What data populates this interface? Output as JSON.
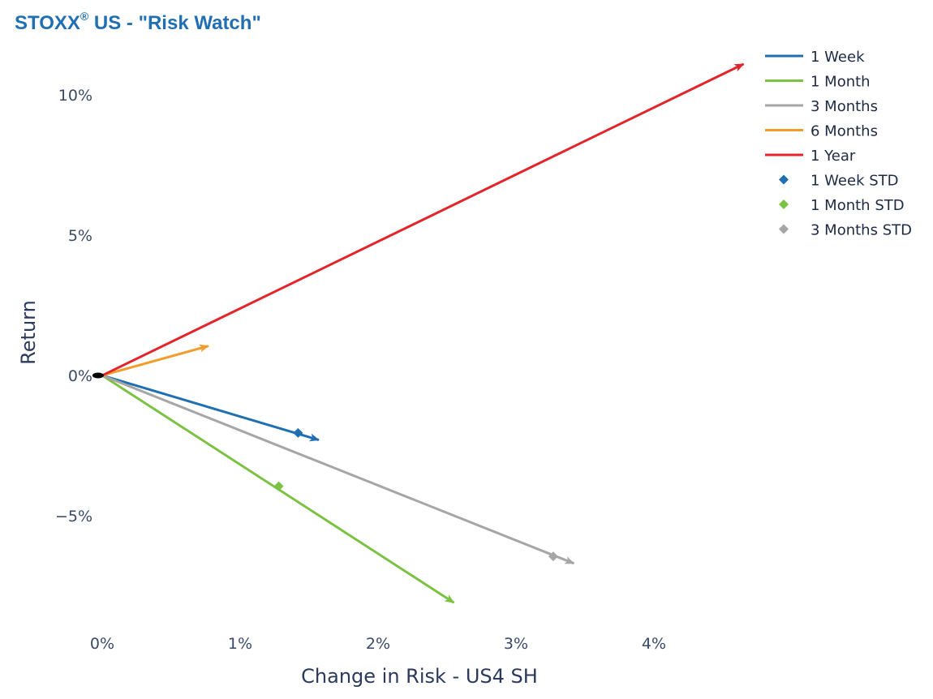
{
  "title": {
    "prefix": "STOXX",
    "superscript": "®",
    "suffix": " US - \"Risk Watch\""
  },
  "chart_data": {
    "type": "line",
    "xlabel": "Change in Risk - US4 SH",
    "ylabel": "Return",
    "xlim": [
      0,
      4.6
    ],
    "ylim": [
      -8.5,
      12
    ],
    "x_ticks": [
      {
        "value": 0,
        "label": "0%"
      },
      {
        "value": 1,
        "label": "1%"
      },
      {
        "value": 2,
        "label": "2%"
      },
      {
        "value": 3,
        "label": "3%"
      },
      {
        "value": 4,
        "label": "4%"
      }
    ],
    "y_ticks": [
      {
        "value": 10,
        "label": "10%"
      },
      {
        "value": 5,
        "label": "5%"
      },
      {
        "value": 0,
        "label": "0%"
      },
      {
        "value": -5,
        "label": "−5%"
      }
    ],
    "grid": false,
    "legend_position": "top-right",
    "origin": [
      -0.03,
      0
    ],
    "series": [
      {
        "name": "1 Week",
        "color": "#1f6fb2",
        "x": [
          0,
          1.57
        ],
        "y": [
          0,
          -2.3
        ]
      },
      {
        "name": "1 Month",
        "color": "#7cc242",
        "x": [
          0,
          2.55
        ],
        "y": [
          0,
          -8.1
        ]
      },
      {
        "name": "3 Months",
        "color": "#a6a6a6",
        "x": [
          0,
          3.42
        ],
        "y": [
          0,
          -6.7
        ]
      },
      {
        "name": "6 Months",
        "color": "#f39c2c",
        "x": [
          0,
          0.77
        ],
        "y": [
          0,
          1.05
        ]
      },
      {
        "name": "1 Year",
        "color": "#e3242b",
        "x": [
          0,
          4.65
        ],
        "y": [
          0,
          11.1
        ]
      }
    ],
    "std_points": [
      {
        "name": "1 Week STD",
        "color": "#1f6fb2",
        "x": 1.42,
        "y": -2.05
      },
      {
        "name": "1 Month STD",
        "color": "#7cc242",
        "x": 1.28,
        "y": -3.95
      },
      {
        "name": "3 Months STD",
        "color": "#a6a6a6",
        "x": 3.27,
        "y": -6.45
      }
    ]
  }
}
